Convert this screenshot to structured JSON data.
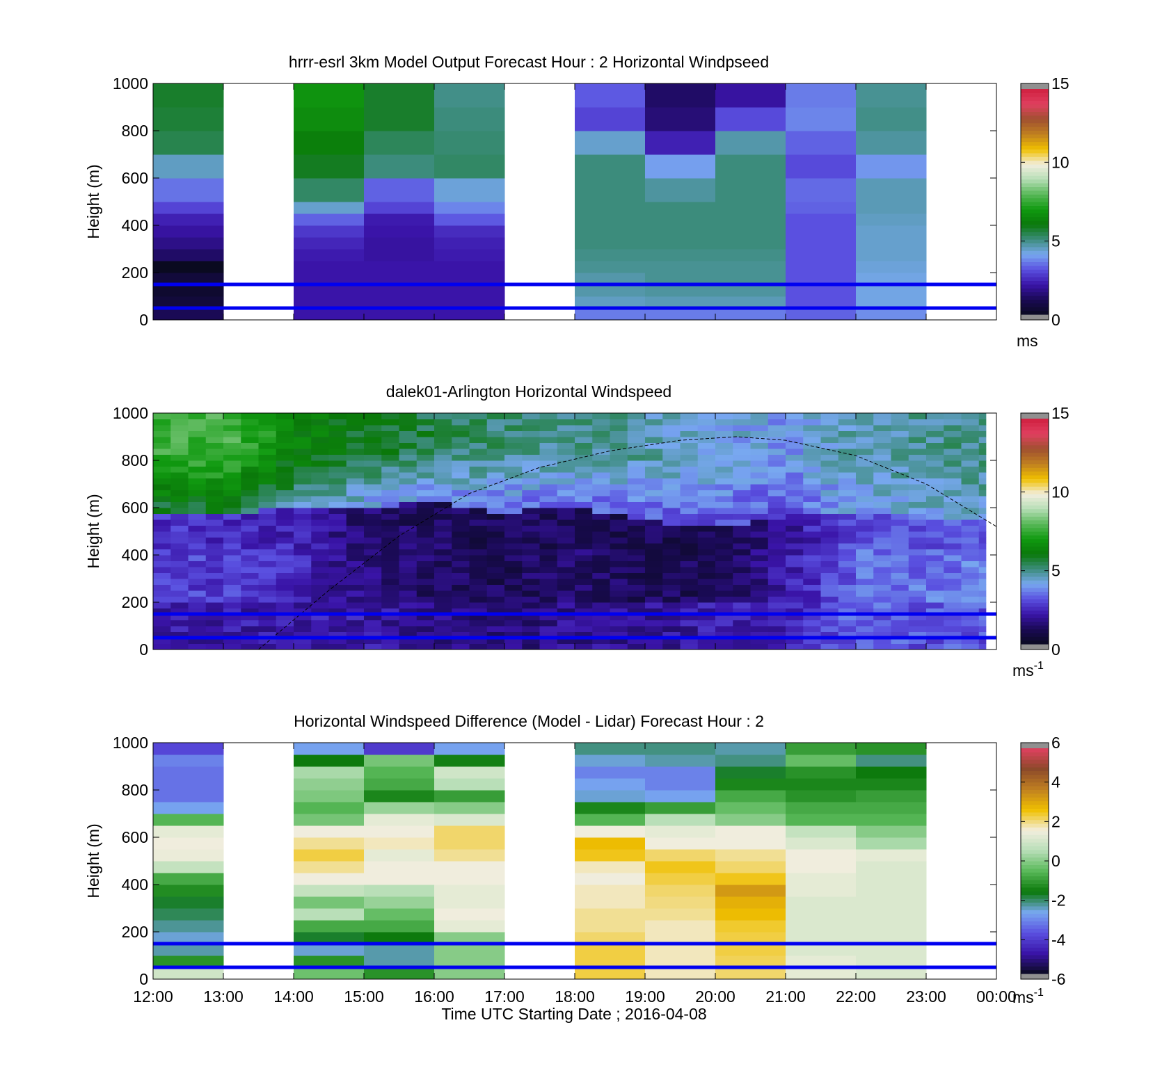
{
  "figure": {
    "xlabel": "Time UTC  Starting Date ; 2016-04-08",
    "x_ticks": [
      "12:00",
      "13:00",
      "14:00",
      "15:00",
      "16:00",
      "17:00",
      "18:00",
      "19:00",
      "20:00",
      "21:00",
      "22:00",
      "23:00",
      "00:00"
    ]
  },
  "chart_data": [
    {
      "type": "heatmap",
      "title": "hrrr-esrl 3km Model Output   Forecast Hour : 2 Horizontal Windpseed",
      "ylabel": "Height (m)",
      "ylim": [
        0,
        1000
      ],
      "y_ticks": [
        "0",
        "200",
        "400",
        "600",
        "800",
        "1000"
      ],
      "x_categories": [
        "12:00",
        "13:00",
        "14:00",
        "15:00",
        "16:00",
        "17:00",
        "18:00",
        "19:00",
        "20:00",
        "21:00",
        "22:00",
        "23:00"
      ],
      "height_bins": [
        0,
        50,
        100,
        150,
        200,
        250,
        300,
        350,
        400,
        450,
        500,
        600,
        700,
        800,
        900,
        1000
      ],
      "values": [
        [
          1.0,
          0.5,
          0.3,
          0.5,
          0.0,
          1.2,
          1.6,
          1.9,
          2.2,
          2.8,
          3.4,
          4.4,
          5.4,
          5.6,
          5.7
        ],
        [
          null,
          null,
          null,
          null,
          null,
          null,
          null,
          null,
          null,
          null,
          null,
          null,
          null,
          null,
          null
        ],
        [
          2.0,
          2.0,
          2.0,
          2.0,
          2.0,
          2.1,
          2.3,
          2.6,
          3.2,
          4.3,
          5.2,
          5.8,
          6.2,
          6.6,
          6.8
        ],
        [
          2.0,
          2.0,
          2.0,
          2.0,
          2.0,
          1.9,
          1.9,
          2.0,
          2.1,
          2.8,
          3.2,
          5.0,
          5.3,
          5.7,
          5.7
        ],
        [
          2.0,
          2.0,
          2.0,
          2.0,
          2.0,
          2.1,
          2.2,
          2.4,
          3.1,
          3.6,
          4.2,
          5.2,
          5.1,
          5.0,
          4.9
        ],
        [
          null,
          null,
          null,
          null,
          null,
          null,
          null,
          null,
          null,
          null,
          null,
          null,
          null,
          null,
          null
        ],
        [
          3.5,
          4.4,
          4.6,
          4.6,
          4.8,
          4.9,
          5.0,
          5.0,
          5.0,
          5.0,
          5.0,
          5.0,
          4.3,
          2.8,
          3.1
        ],
        [
          3.5,
          4.5,
          4.7,
          4.8,
          4.8,
          4.9,
          5.0,
          5.0,
          5.0,
          5.0,
          4.7,
          3.9,
          2.2,
          1.4,
          1.2
        ],
        [
          3.5,
          4.5,
          4.7,
          4.8,
          4.8,
          4.9,
          5.0,
          5.0,
          5.0,
          5.0,
          5.0,
          5.0,
          4.6,
          2.9,
          1.9
        ],
        [
          3.2,
          3.0,
          3.0,
          3.0,
          3.0,
          3.0,
          3.0,
          3.0,
          3.0,
          3.2,
          3.3,
          2.9,
          3.2,
          3.6,
          3.5
        ],
        [
          3.7,
          4.1,
          4.1,
          4.1,
          4.2,
          4.3,
          4.3,
          4.3,
          4.4,
          4.5,
          4.5,
          3.8,
          4.7,
          4.9,
          4.8
        ],
        [
          null,
          null,
          null,
          null,
          null,
          null,
          null,
          null,
          null,
          null,
          null,
          null,
          null,
          null,
          null
        ]
      ],
      "colorbar": {
        "min": 0,
        "max": 15,
        "ticks": [
          "0",
          "5",
          "10",
          "15"
        ],
        "unit": "ms"
      },
      "hlines": [
        50,
        150
      ]
    },
    {
      "type": "heatmap",
      "title": "dalek01-Arlington  Horizontal Windspeed",
      "ylabel": "Height (m)",
      "ylim": [
        0,
        1000
      ],
      "y_ticks": [
        "0",
        "200",
        "400",
        "600",
        "800",
        "1000"
      ],
      "x_range_hours": [
        12,
        23.85
      ],
      "time_step_hours": 0.25,
      "height_step_m": 25,
      "profile_anchors": [
        {
          "t": 12,
          "low": 2.0,
          "mid": 2.8,
          "top": 7.5,
          "jet": 420
        },
        {
          "t": 13,
          "low": 2.0,
          "mid": 2.7,
          "top": 7.8,
          "jet": 400
        },
        {
          "t": 14,
          "low": 2.1,
          "mid": 2.4,
          "top": 6.5,
          "jet": 450
        },
        {
          "t": 15,
          "low": 2.0,
          "mid": 1.5,
          "top": 5.8,
          "jet": 440
        },
        {
          "t": 16,
          "low": 1.6,
          "mid": 1.2,
          "top": 5.4,
          "jet": 460
        },
        {
          "t": 17,
          "low": 1.5,
          "mid": 1.0,
          "top": 5.0,
          "jet": 420
        },
        {
          "t": 18,
          "low": 1.7,
          "mid": 1.3,
          "top": 4.8,
          "jet": 440
        },
        {
          "t": 19,
          "low": 1.8,
          "mid": 1.0,
          "top": 4.6,
          "jet": 380
        },
        {
          "t": 20,
          "low": 2.0,
          "mid": 1.1,
          "top": 4.2,
          "jet": 360
        },
        {
          "t": 21,
          "low": 2.2,
          "mid": 2.0,
          "top": 3.8,
          "jet": 400
        },
        {
          "t": 22,
          "low": 3.2,
          "mid": 3.3,
          "top": 4.6,
          "jet": 420
        },
        {
          "t": 23,
          "low": 3.0,
          "mid": 3.4,
          "top": 4.8,
          "jet": 400
        },
        {
          "t": 23.85,
          "low": 3.0,
          "mid": 3.5,
          "top": 4.9,
          "jet": 400
        }
      ],
      "colorbar": {
        "min": 0,
        "max": 15,
        "ticks": [
          "0",
          "5",
          "10",
          "15"
        ],
        "unit": "ms",
        "unit_sup": "-1"
      },
      "hlines": [
        50,
        150
      ],
      "boundary_layer_curve": [
        {
          "t": 13.5,
          "h": 0
        },
        {
          "t": 14.5,
          "h": 250
        },
        {
          "t": 15.5,
          "h": 480
        },
        {
          "t": 16.5,
          "h": 660
        },
        {
          "t": 17.5,
          "h": 770
        },
        {
          "t": 18.5,
          "h": 840
        },
        {
          "t": 19.5,
          "h": 885
        },
        {
          "t": 20.3,
          "h": 900
        },
        {
          "t": 21.0,
          "h": 885
        },
        {
          "t": 22.0,
          "h": 820
        },
        {
          "t": 23.0,
          "h": 700
        },
        {
          "t": 24.0,
          "h": 520
        }
      ]
    },
    {
      "type": "heatmap",
      "title": "Horizontal Windspeed Difference (Model - Lidar) Forecast Hour : 2",
      "ylabel": "Height (m)",
      "ylim": [
        0,
        1000
      ],
      "y_ticks": [
        "0",
        "200",
        "400",
        "600",
        "800",
        "1000"
      ],
      "x_categories": [
        "12:00",
        "13:00",
        "14:00",
        "15:00",
        "16:00",
        "17:00",
        "18:00",
        "19:00",
        "20:00",
        "21:00",
        "22:00",
        "23:00"
      ],
      "height_bins": [
        0,
        50,
        100,
        150,
        200,
        250,
        300,
        350,
        400,
        450,
        500,
        550,
        600,
        650,
        700,
        750,
        800,
        850,
        900,
        950,
        1000
      ],
      "values": [
        [
          1.0,
          -1.2,
          -2.4,
          -2.6,
          -2.3,
          -2.0,
          -1.8,
          -1.3,
          -0.8,
          0.8,
          1.5,
          1.6,
          1.4,
          -0.6,
          -2.8,
          -3.4,
          -3.4,
          -3.4,
          -3.2,
          -4.0
        ],
        [
          null,
          null,
          null,
          null,
          null,
          null,
          null,
          null,
          null,
          null,
          null,
          null,
          null,
          null,
          null,
          null,
          null,
          null,
          null,
          null
        ],
        [
          -0.3,
          -1.2,
          -2.6,
          -1.8,
          -0.8,
          0.6,
          -0.2,
          0.8,
          1.6,
          2.0,
          2.4,
          2.0,
          1.6,
          -0.2,
          -0.6,
          -0.1,
          0.1,
          0.4,
          -1.6,
          -2.8
        ],
        [
          -1.2,
          -2.4,
          -2.4,
          -1.6,
          -0.8,
          -0.4,
          0.2,
          0.6,
          1.6,
          1.6,
          1.4,
          1.8,
          1.6,
          1.4,
          0.2,
          -1.4,
          -0.8,
          -0.6,
          -0.2,
          -4.2
        ],
        [
          0.0,
          0.0,
          0.0,
          0.0,
          1.4,
          1.6,
          1.4,
          1.4,
          1.6,
          1.6,
          2.0,
          2.2,
          2.2,
          1.2,
          0.0,
          -1.0,
          0.6,
          1.0,
          -1.5,
          -2.8
        ],
        [
          null,
          null,
          null,
          null,
          null,
          null,
          null,
          null,
          null,
          null,
          null,
          null,
          null,
          null,
          null,
          null,
          null,
          null,
          null,
          null
        ],
        [
          2.4,
          2.4,
          2.4,
          2.2,
          2.0,
          2.0,
          1.8,
          1.8,
          1.6,
          1.8,
          2.6,
          2.8,
          1.6,
          -0.6,
          -1.4,
          -2.6,
          -2.8,
          -3.2,
          -2.6,
          -2.2
        ],
        [
          1.8,
          1.8,
          1.8,
          1.8,
          1.8,
          2.0,
          2.1,
          2.2,
          2.4,
          2.6,
          2.2,
          1.6,
          1.4,
          0.6,
          -1.0,
          -2.8,
          -3.2,
          -3.2,
          -2.4,
          -2.2
        ],
        [
          2.2,
          2.3,
          2.4,
          2.4,
          2.5,
          2.8,
          3.0,
          3.4,
          2.6,
          2.2,
          2.0,
          1.6,
          1.6,
          0.0,
          -0.4,
          -0.8,
          -1.4,
          -1.8,
          -2.2,
          -2.4
        ],
        [
          1.4,
          1.4,
          1.2,
          1.2,
          1.2,
          1.2,
          1.2,
          1.4,
          1.4,
          1.6,
          1.6,
          1.2,
          0.8,
          -0.6,
          -0.8,
          -1.2,
          -1.4,
          -1.2,
          -0.4,
          -1.0
        ],
        [
          1.2,
          1.2,
          1.2,
          1.2,
          1.2,
          1.2,
          1.2,
          1.2,
          1.2,
          1.2,
          1.4,
          0.4,
          0.0,
          -0.6,
          -0.8,
          -1.0,
          -1.4,
          -1.6,
          -2.2,
          -1.2
        ],
        [
          null,
          null,
          null,
          null,
          null,
          null,
          null,
          null,
          null,
          null,
          null,
          null,
          null,
          null,
          null,
          null,
          null,
          null,
          null,
          null
        ]
      ],
      "colorbar": {
        "min": -6,
        "max": 6,
        "ticks": [
          "-6",
          "-4",
          "-2",
          "0",
          "2",
          "4",
          "6"
        ],
        "unit": "ms",
        "unit_sup": "-1"
      },
      "hlines": [
        50,
        150
      ]
    }
  ],
  "colors": {
    "speed_colormap": [
      "#0a0a20",
      "#1a0a55",
      "#3a14a8",
      "#5a50e0",
      "#78a8f0",
      "#3c8c7c",
      "#0a780a",
      "#109a10",
      "#58b858",
      "#b6deb6",
      "#f2eede",
      "#f0c000",
      "#c08020",
      "#a05030",
      "#e04060",
      "#d02040"
    ],
    "diff_colormap": [
      "#0a0a20",
      "#3a14a8",
      "#5a50e0",
      "#78a8f0",
      "#0a780a",
      "#58b858",
      "#b6deb6",
      "#f2eede",
      "#f0c000",
      "#c08020",
      "#8c4a2a",
      "#e04060"
    ],
    "hline": "#0000f0",
    "overflow": "#909090"
  }
}
